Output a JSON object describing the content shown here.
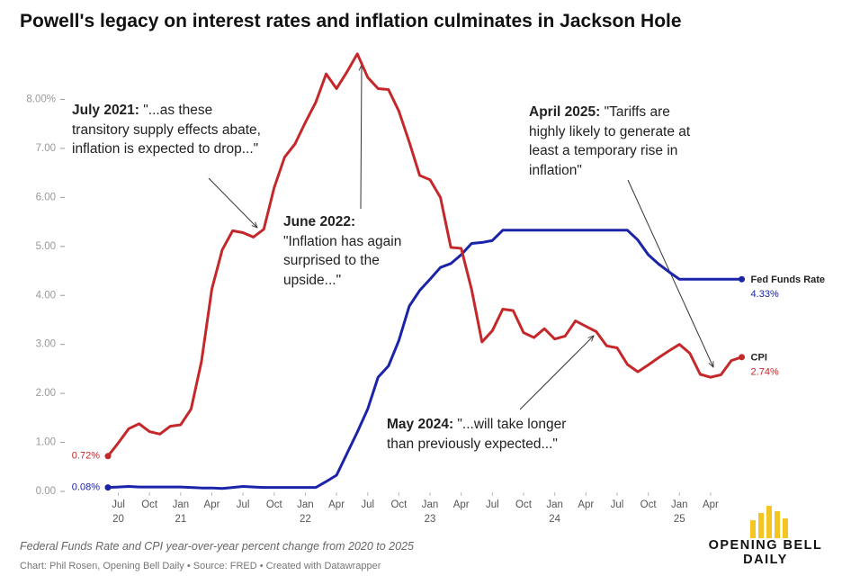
{
  "chart_data": {
    "type": "line",
    "title": "Powell's legacy on interest rates and inflation culminates in Jackson Hole",
    "caption": "Federal Funds Rate and CPI year-over-year percent change from 2020 to 2025",
    "credits": "Chart: Phil Rosen, Opening Bell Daily • Source: FRED • Created with Datawrapper",
    "logo": "OPENING BELL\nDAILY",
    "x": [
      "2020-06",
      "2020-07",
      "2020-08",
      "2020-09",
      "2020-10",
      "2020-11",
      "2020-12",
      "2021-01",
      "2021-02",
      "2021-03",
      "2021-04",
      "2021-05",
      "2021-06",
      "2021-07",
      "2021-08",
      "2021-09",
      "2021-10",
      "2021-11",
      "2021-12",
      "2022-01",
      "2022-02",
      "2022-03",
      "2022-04",
      "2022-05",
      "2022-06",
      "2022-07",
      "2022-08",
      "2022-09",
      "2022-10",
      "2022-11",
      "2022-12",
      "2023-01",
      "2023-02",
      "2023-03",
      "2023-04",
      "2023-05",
      "2023-06",
      "2023-07",
      "2023-08",
      "2023-09",
      "2023-10",
      "2023-11",
      "2023-12",
      "2024-01",
      "2024-02",
      "2024-03",
      "2024-04",
      "2024-05",
      "2024-06",
      "2024-07",
      "2024-08",
      "2024-09",
      "2024-10",
      "2024-11",
      "2024-12",
      "2025-01",
      "2025-02",
      "2025-03",
      "2025-04",
      "2025-05",
      "2025-06",
      "2025-07"
    ],
    "series": [
      {
        "name": "Fed Funds Rate",
        "color": "#1b23a8",
        "values": [
          0.08,
          0.09,
          0.1,
          0.09,
          0.09,
          0.09,
          0.09,
          0.09,
          0.08,
          0.07,
          0.07,
          0.06,
          0.08,
          0.1,
          0.09,
          0.08,
          0.08,
          0.08,
          0.08,
          0.08,
          0.08,
          0.2,
          0.33,
          0.77,
          1.21,
          1.68,
          2.33,
          2.56,
          3.08,
          3.78,
          4.1,
          4.33,
          4.57,
          4.65,
          4.83,
          5.06,
          5.08,
          5.12,
          5.33,
          5.33,
          5.33,
          5.33,
          5.33,
          5.33,
          5.33,
          5.33,
          5.33,
          5.33,
          5.33,
          5.33,
          5.33,
          5.13,
          4.83,
          4.64,
          4.48,
          4.33,
          4.33,
          4.33,
          4.33,
          4.33,
          4.33,
          4.33
        ],
        "value_labels": [
          "0.08%",
          null,
          null,
          null,
          null,
          null,
          null,
          null,
          null,
          null,
          null,
          null,
          null,
          null,
          null,
          null,
          null,
          null,
          null,
          null,
          null,
          null,
          null,
          null,
          null,
          null,
          null,
          null,
          null,
          null,
          null,
          null,
          null,
          null,
          null,
          null,
          null,
          null,
          null,
          null,
          null,
          null,
          null,
          null,
          null,
          null,
          null,
          null,
          null,
          null,
          null,
          null,
          null,
          null,
          null,
          null,
          null,
          null,
          null,
          null,
          null,
          "4.33%"
        ]
      },
      {
        "name": "CPI",
        "color": "#c4282b",
        "values": [
          0.72,
          0.99,
          1.28,
          1.38,
          1.22,
          1.17,
          1.33,
          1.36,
          1.68,
          2.65,
          4.13,
          4.93,
          5.32,
          5.28,
          5.19,
          5.35,
          6.2,
          6.82,
          7.09,
          7.53,
          7.94,
          8.52,
          8.22,
          8.56,
          8.93,
          8.45,
          8.22,
          8.2,
          7.76,
          7.13,
          6.45,
          6.36,
          6.0,
          4.98,
          4.96,
          4.12,
          3.05,
          3.28,
          3.72,
          3.69,
          3.24,
          3.14,
          3.32,
          3.11,
          3.17,
          3.48,
          3.37,
          3.26,
          2.97,
          2.93,
          2.59,
          2.44,
          2.58,
          2.73,
          2.87,
          3.0,
          2.82,
          2.39,
          2.33,
          2.38,
          2.67,
          2.74
        ],
        "value_labels": [
          "0.72%",
          null,
          null,
          null,
          null,
          null,
          null,
          null,
          null,
          null,
          null,
          null,
          null,
          null,
          null,
          null,
          null,
          null,
          null,
          null,
          null,
          null,
          null,
          null,
          null,
          null,
          null,
          null,
          null,
          null,
          null,
          null,
          null,
          null,
          null,
          null,
          null,
          null,
          null,
          null,
          null,
          null,
          null,
          null,
          null,
          null,
          null,
          null,
          null,
          null,
          null,
          null,
          null,
          null,
          null,
          null,
          null,
          null,
          null,
          null,
          null,
          "2.74%"
        ]
      }
    ],
    "ylim": [
      0,
      9
    ],
    "yticks": [
      {
        "value": 0,
        "label": "0.00"
      },
      {
        "value": 1,
        "label": "1.00"
      },
      {
        "value": 2,
        "label": "2.00"
      },
      {
        "value": 3,
        "label": "3.00"
      },
      {
        "value": 4,
        "label": "4.00"
      },
      {
        "value": 5,
        "label": "5.00"
      },
      {
        "value": 6,
        "label": "6.00"
      },
      {
        "value": 7,
        "label": "7.00"
      },
      {
        "value": 8,
        "label": "8.00%"
      }
    ],
    "xticks": [
      {
        "value": "2020-07",
        "label": "Jul\n20"
      },
      {
        "value": "2020-10",
        "label": "Oct"
      },
      {
        "value": "2021-01",
        "label": "Jan\n21"
      },
      {
        "value": "2021-04",
        "label": "Apr"
      },
      {
        "value": "2021-07",
        "label": "Jul"
      },
      {
        "value": "2021-10",
        "label": "Oct"
      },
      {
        "value": "2022-01",
        "label": "Jan\n22"
      },
      {
        "value": "2022-04",
        "label": "Apr"
      },
      {
        "value": "2022-07",
        "label": "Jul"
      },
      {
        "value": "2022-10",
        "label": "Oct"
      },
      {
        "value": "2023-01",
        "label": "Jan\n23"
      },
      {
        "value": "2023-04",
        "label": "Apr"
      },
      {
        "value": "2023-07",
        "label": "Jul"
      },
      {
        "value": "2023-10",
        "label": "Oct"
      },
      {
        "value": "2024-01",
        "label": "Jan\n24"
      },
      {
        "value": "2024-04",
        "label": "Apr"
      },
      {
        "value": "2024-07",
        "label": "Jul"
      },
      {
        "value": "2024-10",
        "label": "Oct"
      },
      {
        "value": "2025-01",
        "label": "Jan\n25"
      },
      {
        "value": "2025-04",
        "label": "Apr"
      }
    ],
    "grid": false,
    "annotations": [
      {
        "label": "July 2021:",
        "text": "\"...as these transitory supply effects abate, inflation is expected to drop...\""
      },
      {
        "label": "June 2022:",
        "text": "\"Inflation has again surprised to the upside...\""
      },
      {
        "label": "April 2025:",
        "text": "\"Tariffs are highly likely to generate at least a temporary rise in inflation\""
      },
      {
        "label": "May 2024:",
        "text": "\"...will take longer than previously expected...\""
      }
    ]
  }
}
